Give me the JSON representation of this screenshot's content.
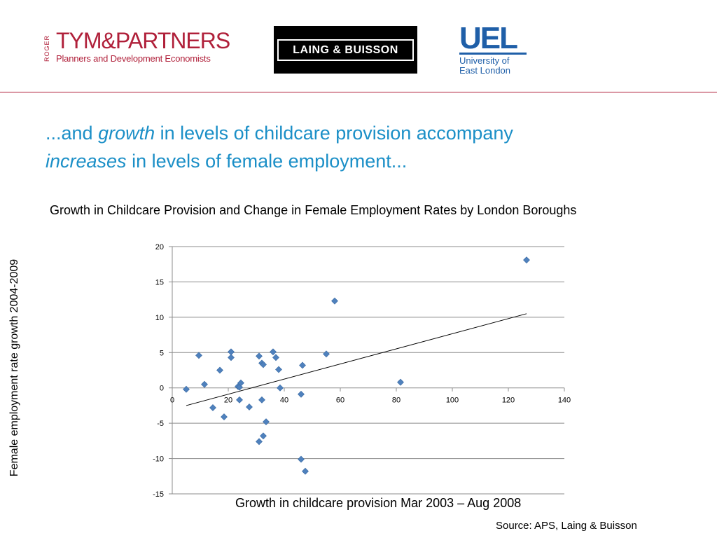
{
  "logos": {
    "tym": {
      "vertical": "ROGER",
      "name": "TYM&PARTNERS",
      "tagline": "Planners and Development Economists"
    },
    "laing_buisson": "LAING & BUISSON",
    "uel": {
      "abbr": "UEL",
      "line1": "University of",
      "line2": "East London"
    }
  },
  "slide": {
    "title_part1": "...and ",
    "title_em1": "growth",
    "title_part2": " in levels of childcare provision accompany",
    "title_em2": "increases",
    "title_part3": " in levels of female employment..."
  },
  "source": "Source: APS, Laing & Buisson",
  "colors": {
    "accent": "#1b8fc7",
    "brand_red": "#b0203a",
    "marker": "#4f81bd",
    "uel_blue": "#1f5fa8"
  },
  "chart_data": {
    "type": "scatter",
    "title": "Growth in Childcare Provision and Change in Female Employment Rates by  London Boroughs",
    "xlabel": "Growth in childcare provision Mar 2003 – Aug 2008",
    "ylabel": "Female employment rate growth 2004-2009",
    "xlim": [
      0,
      140
    ],
    "ylim": [
      -15,
      20
    ],
    "xticks": [
      0,
      20,
      40,
      60,
      80,
      100,
      120,
      140
    ],
    "yticks": [
      20,
      15,
      10,
      5,
      0,
      -5,
      -10,
      -15
    ],
    "grid": "horizontal",
    "trendline": {
      "x": [
        5,
        126.5
      ],
      "y": [
        -2.5,
        10.5
      ]
    },
    "points": [
      [
        5,
        -0.2
      ],
      [
        9.5,
        4.6
      ],
      [
        11.5,
        0.5
      ],
      [
        14.5,
        -2.8
      ],
      [
        17,
        2.5
      ],
      [
        18.5,
        -4.1
      ],
      [
        21,
        5.1
      ],
      [
        21,
        4.3
      ],
      [
        23.5,
        0.2
      ],
      [
        24,
        0.1
      ],
      [
        24,
        -1.7
      ],
      [
        24.5,
        0.7
      ],
      [
        27.5,
        -2.7
      ],
      [
        31,
        4.5
      ],
      [
        31,
        -7.6
      ],
      [
        32,
        3.5
      ],
      [
        32.5,
        3.3
      ],
      [
        32,
        -1.7
      ],
      [
        32.5,
        -6.8
      ],
      [
        33.5,
        -4.8
      ],
      [
        36,
        5.1
      ],
      [
        37,
        4.3
      ],
      [
        38,
        2.6
      ],
      [
        38.5,
        0
      ],
      [
        46,
        -10.1
      ],
      [
        46,
        -0.9
      ],
      [
        46.5,
        3.2
      ],
      [
        47.5,
        -11.8
      ],
      [
        55,
        4.8
      ],
      [
        58,
        12.3
      ],
      [
        81.5,
        0.8
      ],
      [
        126.5,
        18.1
      ]
    ]
  }
}
